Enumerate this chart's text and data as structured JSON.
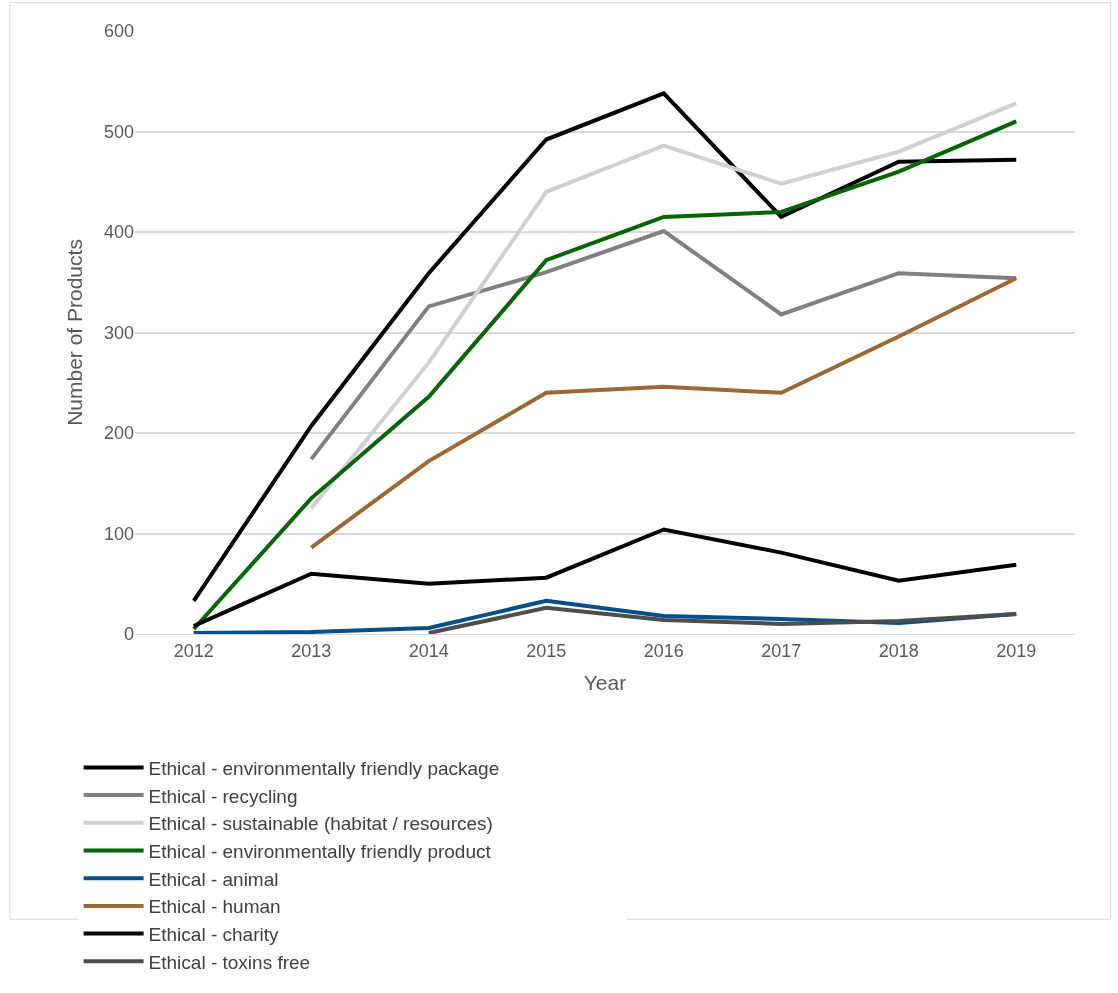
{
  "chart_data": {
    "type": "line",
    "xlabel": "Year",
    "ylabel": "Number of Products",
    "categories": [
      "2012",
      "2013",
      "2014",
      "2015",
      "2016",
      "2017",
      "2018",
      "2019"
    ],
    "ylim": [
      0,
      600
    ],
    "yticks": [
      0,
      100,
      200,
      300,
      400,
      500,
      600
    ],
    "grid": "y",
    "legend": "bottom",
    "marker": "none",
    "line_style": "solid",
    "series": [
      {
        "name": "Ethical - environmentally friendly package",
        "color": "#000000",
        "values": [
          33,
          207,
          359,
          492,
          538,
          415,
          470,
          472
        ]
      },
      {
        "name": "Ethical - recycling",
        "color": "#808080",
        "values": [
          null,
          174,
          326,
          360,
          401,
          318,
          359,
          354
        ]
      },
      {
        "name": "Ethical - sustainable (habitat / resources)",
        "color": "#d0d0d0",
        "values": [
          null,
          125,
          270,
          440,
          486,
          448,
          480,
          528
        ]
      },
      {
        "name": "Ethical - environmentally friendly product",
        "color": "#006400",
        "values": [
          5,
          135,
          236,
          372,
          415,
          420,
          460,
          510
        ]
      },
      {
        "name": "Ethical - animal",
        "color": "#004f8c",
        "values": [
          1,
          2,
          6,
          33,
          18,
          15,
          11,
          20
        ]
      },
      {
        "name": "Ethical - human",
        "color": "#9c6934",
        "values": [
          null,
          86,
          172,
          240,
          246,
          240,
          296,
          354
        ]
      },
      {
        "name": "Ethical - charity",
        "color": "#000000",
        "values": [
          8,
          60,
          50,
          56,
          104,
          81,
          53,
          69
        ]
      },
      {
        "name": "Ethical - toxins free",
        "color": "#4d4d4d",
        "values": [
          null,
          null,
          1,
          26,
          14,
          10,
          13,
          20
        ]
      }
    ]
  }
}
